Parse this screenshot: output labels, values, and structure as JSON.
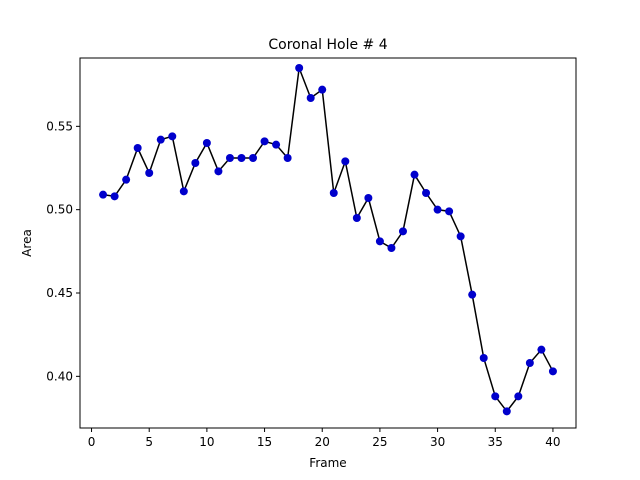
{
  "chart_data": {
    "type": "line",
    "title": "Coronal Hole # 4",
    "xlabel": "Frame",
    "ylabel": "Area",
    "xlim": [
      -1,
      42
    ],
    "ylim": [
      0.369,
      0.591
    ],
    "xticks": [
      0,
      5,
      10,
      15,
      20,
      25,
      30,
      35,
      40
    ],
    "yticks": [
      0.4,
      0.45,
      0.5,
      0.55
    ],
    "ytick_labels": [
      "0.40",
      "0.45",
      "0.50",
      "0.55"
    ],
    "grid": false,
    "line_color": "#000000",
    "marker_color": "#0000cc",
    "series": [
      {
        "x": [
          1,
          2,
          3,
          4,
          5,
          6,
          7,
          8,
          9,
          10,
          11,
          12,
          13,
          14,
          15,
          16,
          17,
          18,
          19,
          20,
          21,
          22,
          23,
          24,
          25,
          26,
          27,
          28,
          29,
          30,
          31,
          32,
          33,
          34,
          35,
          36,
          37,
          38,
          39,
          40
        ],
        "values": [
          0.509,
          0.508,
          0.518,
          0.537,
          0.522,
          0.542,
          0.544,
          0.511,
          0.528,
          0.54,
          0.523,
          0.531,
          0.531,
          0.531,
          0.541,
          0.539,
          0.531,
          0.585,
          0.567,
          0.572,
          0.51,
          0.529,
          0.495,
          0.507,
          0.481,
          0.477,
          0.487,
          0.521,
          0.51,
          0.5,
          0.499,
          0.484,
          0.449,
          0.411,
          0.388,
          0.379,
          0.388,
          0.408,
          0.416,
          0.403
        ]
      }
    ]
  }
}
